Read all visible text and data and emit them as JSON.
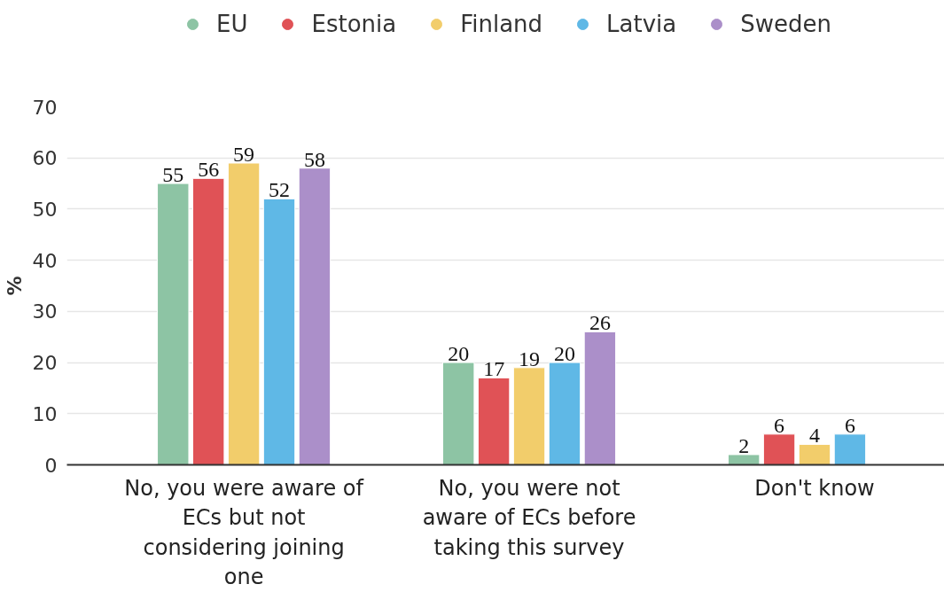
{
  "chart_data": {
    "type": "bar",
    "ylabel": "%",
    "categories": [
      "No, you were aware of ECs but not considering joining one",
      "No, you were not aware of ECs before taking this survey",
      "Don't know"
    ],
    "series": [
      {
        "name": "EU",
        "color": "#8dc4a4",
        "values": [
          55,
          20,
          2
        ]
      },
      {
        "name": "Estonia",
        "color": "#e05256",
        "values": [
          56,
          17,
          6
        ]
      },
      {
        "name": "Finland",
        "color": "#f2cd6b",
        "values": [
          59,
          19,
          4
        ]
      },
      {
        "name": "Latvia",
        "color": "#5fb8e6",
        "values": [
          52,
          20,
          6
        ]
      },
      {
        "name": "Sweden",
        "color": "#ab8fc9",
        "values": [
          58,
          26,
          null
        ]
      }
    ],
    "ylim": [
      0,
      70
    ],
    "yticks": [
      0,
      10,
      20,
      30,
      40,
      50,
      60,
      70
    ],
    "grid": "y",
    "legend": "top",
    "data_labels": true
  }
}
